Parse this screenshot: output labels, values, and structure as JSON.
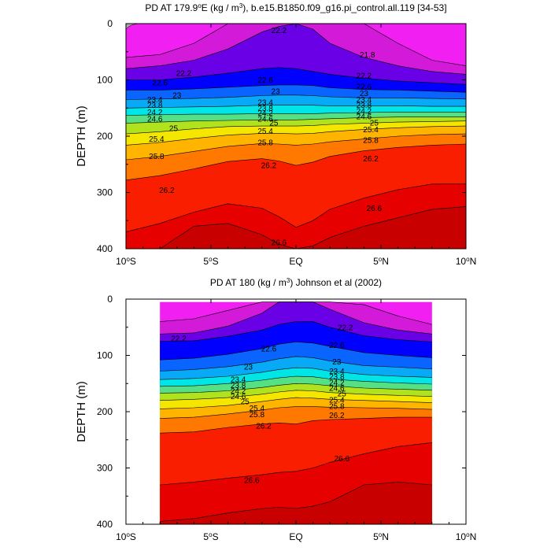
{
  "chart_data": [
    {
      "type": "heatmap",
      "subtype": "filled-contour-section",
      "title_main": "PD AT 179.9",
      "title_super_deg": "o",
      "title_after_deg": "E (kg / m",
      "title_super_unit": "3",
      "title_tail": "), b.e15.B1850.f09_g16.pi_control.all.119 [34-53]",
      "ylabel": "DEPTH (m)",
      "ylim": [
        0,
        400
      ],
      "xlim": [
        -10,
        10
      ],
      "yticks": [
        "0",
        "100",
        "200",
        "300",
        "400"
      ],
      "yticks_values": [
        0,
        100,
        200,
        300,
        400
      ],
      "xticks": [
        {
          "value": -10,
          "text": "10",
          "sup": "o",
          "tail": "S"
        },
        {
          "value": -5,
          "text": "5",
          "sup": "o",
          "tail": "S"
        },
        {
          "value": 0,
          "text": "EQ",
          "sup": "",
          "tail": ""
        },
        {
          "value": 5,
          "text": "5",
          "sup": "o",
          "tail": "N"
        },
        {
          "value": 10,
          "text": "10",
          "sup": "o",
          "tail": "N"
        }
      ],
      "data_lat_range": [
        -10,
        10
      ],
      "contour_interval": 0.2,
      "levels_labeled": [
        "21.8",
        "22.2",
        "22.6",
        "23",
        "23.4",
        "23.8",
        "24.2",
        "24.6",
        "25",
        "25.4",
        "25.8",
        "26.2",
        "26.6"
      ],
      "contour_labels": [
        {
          "text": "22.2",
          "lat": -1.0,
          "depth": 12
        },
        {
          "text": "21.8",
          "lat": 4.2,
          "depth": 55
        },
        {
          "text": "22.2",
          "lat": -6.6,
          "depth": 88
        },
        {
          "text": "22.2",
          "lat": 4.0,
          "depth": 92
        },
        {
          "text": "22.6",
          "lat": -8.0,
          "depth": 105
        },
        {
          "text": "22.6",
          "lat": -1.8,
          "depth": 100
        },
        {
          "text": "22.6",
          "lat": 4.0,
          "depth": 112
        },
        {
          "text": "23",
          "lat": -7.0,
          "depth": 127
        },
        {
          "text": "23",
          "lat": -1.2,
          "depth": 120
        },
        {
          "text": "23",
          "lat": 4.0,
          "depth": 124
        },
        {
          "text": "23.4",
          "lat": -8.3,
          "depth": 135
        },
        {
          "text": "23.4",
          "lat": -1.8,
          "depth": 140
        },
        {
          "text": "23.4",
          "lat": 4.0,
          "depth": 135
        },
        {
          "text": "23.8",
          "lat": -8.3,
          "depth": 145
        },
        {
          "text": "23.8",
          "lat": -1.8,
          "depth": 150
        },
        {
          "text": "23.8",
          "lat": 4.0,
          "depth": 145
        },
        {
          "text": "24.2",
          "lat": -8.3,
          "depth": 157
        },
        {
          "text": "24.2",
          "lat": -1.8,
          "depth": 159
        },
        {
          "text": "24.2",
          "lat": 4.0,
          "depth": 155
        },
        {
          "text": "24.6",
          "lat": -8.3,
          "depth": 169
        },
        {
          "text": "24.6",
          "lat": -1.8,
          "depth": 169
        },
        {
          "text": "24.6",
          "lat": 4.0,
          "depth": 165
        },
        {
          "text": "25",
          "lat": -7.2,
          "depth": 186
        },
        {
          "text": "25",
          "lat": -1.3,
          "depth": 176
        },
        {
          "text": "25",
          "lat": 4.6,
          "depth": 176
        },
        {
          "text": "25.4",
          "lat": -8.2,
          "depth": 205
        },
        {
          "text": "25.4",
          "lat": -1.8,
          "depth": 191
        },
        {
          "text": "25.4",
          "lat": 4.4,
          "depth": 188
        },
        {
          "text": "25.8",
          "lat": -8.2,
          "depth": 236
        },
        {
          "text": "25.8",
          "lat": -1.8,
          "depth": 211
        },
        {
          "text": "25.8",
          "lat": 4.4,
          "depth": 207
        },
        {
          "text": "26.2",
          "lat": -1.6,
          "depth": 252
        },
        {
          "text": "26.2",
          "lat": 4.4,
          "depth": 240
        },
        {
          "text": "26.2",
          "lat": -7.6,
          "depth": 296
        },
        {
          "text": "26.6",
          "lat": 4.6,
          "depth": 328
        },
        {
          "text": "26.6",
          "lat": -1.0,
          "depth": 389
        }
      ],
      "profiles": {
        "lats": [
          -10,
          -8,
          -6,
          -4,
          -2,
          -1,
          0,
          1,
          2,
          4,
          6,
          8,
          10
        ],
        "fields": [
          {
            "level": 21.4,
            "depths": [
              0,
              0,
              0,
              0,
              0,
              0,
              0,
              0,
              0,
              0,
              0,
              0,
              0
            ]
          },
          {
            "level": 21.8,
            "depths": [
              60,
              55,
              35,
              0,
              0,
              0,
              0,
              0,
              0,
              0,
              35,
              65,
              75
            ]
          },
          {
            "level": 22.2,
            "depths": [
              80,
              75,
              65,
              45,
              15,
              5,
              0,
              10,
              35,
              60,
              75,
              85,
              90
            ]
          },
          {
            "level": 22.6,
            "depths": [
              100,
              100,
              95,
              88,
              80,
              78,
              80,
              85,
              90,
              97,
              102,
              105,
              108
            ]
          },
          {
            "level": 23.0,
            "depths": [
              118,
              118,
              116,
              113,
              110,
              109,
              109,
              110,
              114,
              117,
              118,
              120,
              122
            ]
          },
          {
            "level": 23.4,
            "depths": [
              135,
              134,
              133,
              131,
              128,
              127,
              127,
              128,
              130,
              132,
              132,
              133,
              134
            ]
          },
          {
            "level": 23.8,
            "depths": [
              150,
              149,
              148,
              147,
              145,
              145,
              145,
              145,
              146,
              146,
              146,
              147,
              147
            ]
          },
          {
            "level": 24.2,
            "depths": [
              163,
              162,
              161,
              161,
              160,
              160,
              160,
              160,
              159,
              158,
              157,
              157,
              157
            ]
          },
          {
            "level": 24.6,
            "depths": [
              177,
              175,
              173,
              172,
              171,
              171,
              171,
              170,
              169,
              167,
              166,
              166,
              166
            ]
          },
          {
            "level": 25.0,
            "depths": [
              196,
              192,
              187,
              183,
              182,
              182,
              182,
              181,
              179,
              177,
              175,
              174,
              173
            ]
          },
          {
            "level": 25.4,
            "depths": [
              216,
              211,
              204,
              198,
              195,
              195,
              196,
              195,
              192,
              188,
              185,
              183,
              182
            ]
          },
          {
            "level": 25.8,
            "depths": [
              242,
              236,
              227,
              218,
              213,
              214,
              216,
              214,
              210,
              205,
              200,
              197,
              196
            ]
          },
          {
            "level": 26.2,
            "depths": [
              278,
              270,
              258,
              245,
              240,
              244,
              252,
              246,
              236,
              226,
              220,
              216,
              214
            ]
          },
          {
            "level": 26.6,
            "depths": [
              370,
              355,
              335,
              320,
              328,
              343,
              362,
              350,
              330,
              310,
              295,
              285,
              285
            ]
          },
          {
            "level": 27.0,
            "depths": [
              400,
              400,
              360,
              355,
              375,
              392,
              400,
              395,
              380,
              360,
              345,
              330,
              325
            ]
          }
        ]
      },
      "land_color": "#aaaaaa",
      "land_lat_max": -9.2,
      "land_depth_max": 10
    },
    {
      "type": "heatmap",
      "subtype": "filled-contour-section",
      "title_main": "PD AT 180 (kg / m",
      "title_super_unit": "3",
      "title_tail": ") Johnson et al (2002)",
      "ylabel": "DEPTH (m)",
      "ylim": [
        0,
        400
      ],
      "xlim": [
        -10,
        10
      ],
      "yticks": [
        "0",
        "100",
        "200",
        "300",
        "400"
      ],
      "yticks_values": [
        0,
        100,
        200,
        300,
        400
      ],
      "xticks": [
        {
          "value": -10,
          "text": "10",
          "sup": "o",
          "tail": "S"
        },
        {
          "value": -5,
          "text": "5",
          "sup": "o",
          "tail": "S"
        },
        {
          "value": 0,
          "text": "EQ",
          "sup": "",
          "tail": ""
        },
        {
          "value": 5,
          "text": "5",
          "sup": "o",
          "tail": "N"
        },
        {
          "value": 10,
          "text": "10",
          "sup": "o",
          "tail": "N"
        }
      ],
      "data_lat_range": [
        -8,
        8
      ],
      "data_depth_range": [
        5,
        400
      ],
      "contour_interval": 0.2,
      "levels_labeled": [
        "22.2",
        "22.6",
        "23",
        "23.4",
        "23.8",
        "24.2",
        "24.6",
        "25",
        "25.4",
        "25.8",
        "26.2",
        "26.6"
      ],
      "contour_labels": [
        {
          "text": "22.2",
          "lat": 2.9,
          "depth": 50
        },
        {
          "text": "22.2",
          "lat": -6.9,
          "depth": 70
        },
        {
          "text": "22.6",
          "lat": -1.6,
          "depth": 88
        },
        {
          "text": "22.6",
          "lat": 2.4,
          "depth": 82
        },
        {
          "text": "23",
          "lat": -2.8,
          "depth": 120
        },
        {
          "text": "23",
          "lat": 2.4,
          "depth": 111
        },
        {
          "text": "23.4",
          "lat": -3.4,
          "depth": 143
        },
        {
          "text": "23.4",
          "lat": 2.4,
          "depth": 128
        },
        {
          "text": "23.8",
          "lat": -3.4,
          "depth": 153
        },
        {
          "text": "23.8",
          "lat": 2.4,
          "depth": 138
        },
        {
          "text": "24.2",
          "lat": -3.4,
          "depth": 163
        },
        {
          "text": "24.2",
          "lat": 2.4,
          "depth": 148
        },
        {
          "text": "24.6",
          "lat": -3.4,
          "depth": 173
        },
        {
          "text": "24.6",
          "lat": 2.4,
          "depth": 158
        },
        {
          "text": "25",
          "lat": -3.0,
          "depth": 182
        },
        {
          "text": "25",
          "lat": 2.7,
          "depth": 168
        },
        {
          "text": "25.4",
          "lat": -2.3,
          "depth": 194
        },
        {
          "text": "25.4",
          "lat": 2.4,
          "depth": 179
        },
        {
          "text": "25.8",
          "lat": -2.3,
          "depth": 205
        },
        {
          "text": "25.8",
          "lat": 2.4,
          "depth": 190
        },
        {
          "text": "26.2",
          "lat": -1.9,
          "depth": 225
        },
        {
          "text": "26.2",
          "lat": 2.4,
          "depth": 206
        },
        {
          "text": "26.6",
          "lat": -2.6,
          "depth": 322
        },
        {
          "text": "26.6",
          "lat": 2.7,
          "depth": 283
        }
      ],
      "profiles": {
        "lats": [
          -8,
          -6,
          -4,
          -2,
          -1,
          0,
          1,
          2,
          4,
          6,
          8
        ],
        "fields": [
          {
            "level": 21.4,
            "depths": [
              5,
              5,
              5,
              5,
              5,
              5,
              5,
              5,
              5,
              5,
              5
            ]
          },
          {
            "level": 21.8,
            "depths": [
              40,
              35,
              20,
              5,
              5,
              5,
              5,
              5,
              10,
              30,
              45
            ]
          },
          {
            "level": 22.2,
            "depths": [
              62,
              60,
              48,
              25,
              5,
              5,
              5,
              18,
              42,
              55,
              62
            ]
          },
          {
            "level": 22.6,
            "depths": [
              75,
              74,
              66,
              55,
              45,
              40,
              40,
              50,
              65,
              72,
              76
            ]
          },
          {
            "level": 23.0,
            "depths": [
              108,
              105,
              98,
              88,
              80,
              76,
              78,
              84,
              95,
              100,
              104
            ]
          },
          {
            "level": 23.4,
            "depths": [
              128,
              125,
              120,
              112,
              106,
              102,
              104,
              110,
              118,
              121,
              124
            ]
          },
          {
            "level": 23.8,
            "depths": [
              143,
              141,
              137,
              130,
              125,
              122,
              123,
              128,
              134,
              137,
              139
            ]
          },
          {
            "level": 24.2,
            "depths": [
              155,
              154,
              150,
              144,
              140,
              137,
              138,
              142,
              146,
              149,
              151
            ]
          },
          {
            "level": 24.6,
            "depths": [
              167,
              166,
              163,
              157,
              153,
              150,
              151,
              154,
              158,
              160,
              162
            ]
          },
          {
            "level": 25.0,
            "depths": [
              180,
              178,
              175,
              169,
              165,
              162,
              163,
              166,
              169,
              171,
              173
            ]
          },
          {
            "level": 25.4,
            "depths": [
              195,
              193,
              189,
              182,
              178,
              175,
              176,
              178,
              180,
              182,
              184
            ]
          },
          {
            "level": 25.8,
            "depths": [
              212,
              210,
              204,
              197,
              193,
              191,
              191,
              192,
              193,
              194,
              196
            ]
          },
          {
            "level": 26.2,
            "depths": [
              238,
              236,
              228,
              222,
              220,
              222,
              216,
              214,
              212,
              210,
              210
            ]
          },
          {
            "level": 26.6,
            "depths": [
              330,
              325,
              318,
              312,
              308,
              306,
              300,
              290,
              275,
              262,
              255
            ]
          },
          {
            "level": 27.0,
            "depths": [
              395,
              390,
              380,
              372,
              370,
              372,
              368,
              360,
              330,
              325,
              330
            ]
          }
        ]
      }
    }
  ]
}
